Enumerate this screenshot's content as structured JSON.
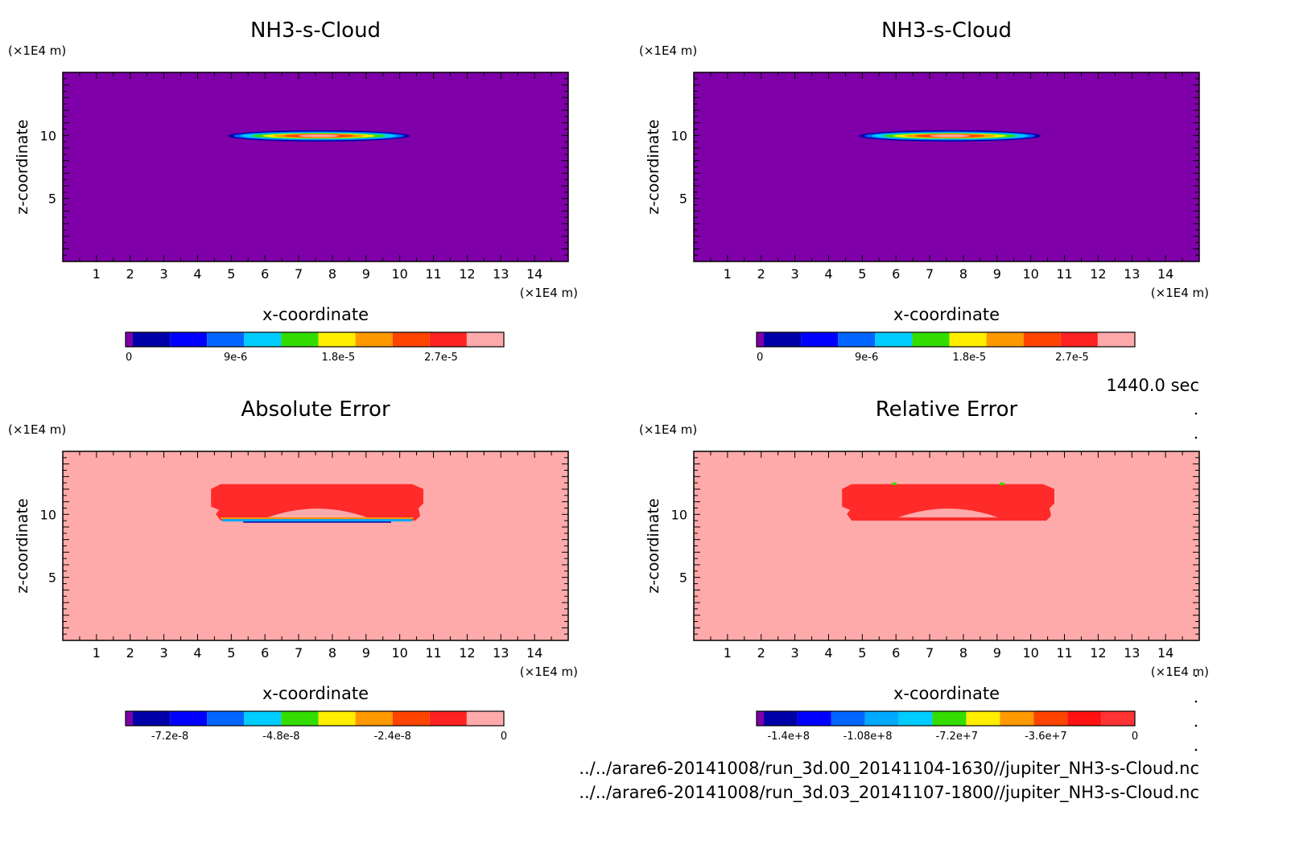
{
  "panels": [
    {
      "title": "NH3-s-Cloud",
      "xlabel": "x-coordinate",
      "ylabel": "z-coordinate",
      "x_unit": "(×1E4 m)",
      "y_unit": "(×1E4 m)",
      "x_ticks": [
        "1",
        "2",
        "3",
        "4",
        "5",
        "6",
        "7",
        "8",
        "9",
        "10",
        "11",
        "12",
        "13",
        "14"
      ],
      "y_ticks": [
        "5",
        "10"
      ],
      "colorbar_labels": [
        "0",
        "9e-6",
        "1.8e-5",
        "2.7e-5"
      ]
    },
    {
      "title": "NH3-s-Cloud",
      "xlabel": "x-coordinate",
      "ylabel": "z-coordinate",
      "x_unit": "(×1E4 m)",
      "y_unit": "(×1E4 m)",
      "x_ticks": [
        "1",
        "2",
        "3",
        "4",
        "5",
        "6",
        "7",
        "8",
        "9",
        "10",
        "11",
        "12",
        "13",
        "14"
      ],
      "y_ticks": [
        "5",
        "10"
      ],
      "colorbar_labels": [
        "0",
        "9e-6",
        "1.8e-5",
        "2.7e-5"
      ]
    },
    {
      "title": "Absolute Error",
      "xlabel": "x-coordinate",
      "ylabel": "z-coordinate",
      "x_unit": "(×1E4 m)",
      "y_unit": "(×1E4 m)",
      "x_ticks": [
        "1",
        "2",
        "3",
        "4",
        "5",
        "6",
        "7",
        "8",
        "9",
        "10",
        "11",
        "12",
        "13",
        "14"
      ],
      "y_ticks": [
        "5",
        "10"
      ],
      "colorbar_labels": [
        "-7.2e-8",
        "-4.8e-8",
        "-2.4e-8",
        "0"
      ]
    },
    {
      "title": "Relative Error",
      "xlabel": "x-coordinate",
      "ylabel": "z-coordinate",
      "x_unit": "(×1E4 m)",
      "y_unit": "(×1E4 m)",
      "x_ticks": [
        "1",
        "2",
        "3",
        "4",
        "5",
        "6",
        "7",
        "8",
        "9",
        "10",
        "11",
        "12",
        "13",
        "14"
      ],
      "y_ticks": [
        "5",
        "10"
      ],
      "colorbar_labels": [
        "-1.4e+8",
        "-1.08e+8",
        "-7.2e+7",
        "-3.6e+7",
        "0"
      ]
    }
  ],
  "time_label": "1440.0 sec",
  "file_paths": [
    "../../arare6-20141008/run_3d.00_20141104-1630//jupiter_NH3-s-Cloud.nc",
    "../../arare6-20141008/run_3d.03_20141107-1800//jupiter_NH3-s-Cloud.nc"
  ],
  "colors": {
    "cloud_background": "#7f00a8",
    "error_background": "#ffaaaa",
    "cloud_scale": [
      "#7f00a8",
      "#0000a8",
      "#0000ff",
      "#0066ff",
      "#00ccff",
      "#33dd00",
      "#ffee00",
      "#ff9900",
      "#ff4400",
      "#ff2222",
      "#ffaaaa"
    ],
    "abs_error_scale": [
      "#7f00a8",
      "#0000a8",
      "#0000ff",
      "#0066ff",
      "#00ccff",
      "#33dd00",
      "#ffee00",
      "#ff9900",
      "#ff4400",
      "#ff2222",
      "#ffaaaa"
    ],
    "rel_error_scale": [
      "#7f00a8",
      "#0000a8",
      "#0000ff",
      "#0066ff",
      "#00aaff",
      "#00ccff",
      "#33dd00",
      "#ffee00",
      "#ff9900",
      "#ff4400",
      "#ff1111",
      "#ff3333"
    ]
  },
  "chart_data": [
    {
      "type": "heatmap",
      "title": "NH3-s-Cloud",
      "xlabel": "x-coordinate",
      "ylabel": "z-coordinate",
      "xlim": [
        0,
        15
      ],
      "ylim": [
        0,
        15
      ],
      "colorbar": {
        "min": 0,
        "max": 3.15e-05,
        "ticks": [
          0,
          9e-06,
          1.8e-05,
          2.7e-05
        ]
      },
      "features": [
        {
          "kind": "cloud_lens",
          "x_range": [
            4.9,
            10.3
          ],
          "z_center": 9.9,
          "peak": 3e-05
        }
      ]
    },
    {
      "type": "heatmap",
      "title": "NH3-s-Cloud",
      "xlabel": "x-coordinate",
      "ylabel": "z-coordinate",
      "xlim": [
        0,
        15
      ],
      "ylim": [
        0,
        15
      ],
      "colorbar": {
        "min": 0,
        "max": 3.15e-05,
        "ticks": [
          0,
          9e-06,
          1.8e-05,
          2.7e-05
        ]
      },
      "features": [
        {
          "kind": "cloud_lens",
          "x_range": [
            4.9,
            10.3
          ],
          "z_center": 9.9,
          "peak": 3e-05
        }
      ]
    },
    {
      "type": "heatmap",
      "title": "Absolute Error",
      "xlabel": "x-coordinate",
      "ylabel": "z-coordinate",
      "xlim": [
        0,
        15
      ],
      "ylim": [
        0,
        15
      ],
      "colorbar": {
        "min": -8e-08,
        "max": 0,
        "ticks": [
          -7.2e-08,
          -4.8e-08,
          -2.4e-08,
          0
        ]
      },
      "features": [
        {
          "kind": "error_region",
          "x_range": [
            4.4,
            10.7
          ],
          "z_range": [
            9.5,
            12.4
          ]
        }
      ]
    },
    {
      "type": "heatmap",
      "title": "Relative Error",
      "xlabel": "x-coordinate",
      "ylabel": "z-coordinate",
      "xlim": [
        0,
        15
      ],
      "ylim": [
        0,
        15
      ],
      "colorbar": {
        "min": -150000000.0,
        "max": 0,
        "ticks": [
          -140000000.0,
          -108000000.0,
          -72000000.0,
          -36000000.0,
          0
        ]
      },
      "features": [
        {
          "kind": "error_region",
          "x_range": [
            4.4,
            10.7
          ],
          "z_range": [
            9.5,
            12.4
          ]
        }
      ]
    }
  ]
}
